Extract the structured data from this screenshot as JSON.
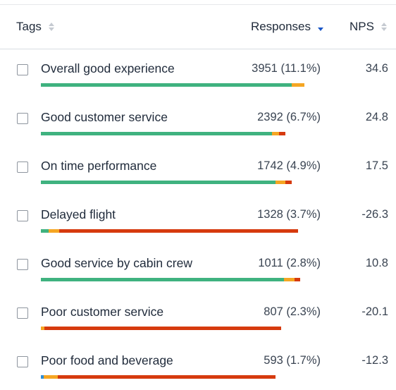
{
  "header": {
    "tags_label": "Tags",
    "responses_label": "Responses",
    "nps_label": "NPS"
  },
  "colors": {
    "promoter": "#3fb27f",
    "passive": "#f5a623",
    "detractor": "#d63a0e",
    "other": "#2f8fd6",
    "sort_active": "#1a56c7"
  },
  "rows": [
    {
      "tag": "Overall good experience",
      "responses": "3951 (11.1%)",
      "nps": "34.6",
      "bar_total": 0.87,
      "bar": {
        "other": 0,
        "promoter": 0.951,
        "passive": 0.049,
        "detractor": 0
      }
    },
    {
      "tag": "Good customer service",
      "responses": "2392 (6.7%)",
      "nps": "24.8",
      "bar_total": 0.808,
      "bar": {
        "other": 0,
        "promoter": 0.946,
        "passive": 0.029,
        "detractor": 0.025
      }
    },
    {
      "tag": "On time performance",
      "responses": "1742 (4.9%)",
      "nps": "17.5",
      "bar_total": 0.829,
      "bar": {
        "other": 0,
        "promoter": 0.937,
        "passive": 0.039,
        "detractor": 0.024
      }
    },
    {
      "tag": "Delayed flight",
      "responses": "1328 (3.7%)",
      "nps": "-26.3",
      "bar_total": 0.848,
      "bar": {
        "other": 0,
        "promoter": 0.031,
        "passive": 0.041,
        "detractor": 0.928
      }
    },
    {
      "tag": "Good service by cabin crew",
      "responses": "1011 (2.8%)",
      "nps": "10.8",
      "bar_total": 0.855,
      "bar": {
        "other": 0,
        "promoter": 0.937,
        "passive": 0.041,
        "detractor": 0.022
      }
    },
    {
      "tag": "Poor customer service",
      "responses": "807 (2.3%)",
      "nps": "-20.1",
      "bar_total": 0.794,
      "bar": {
        "other": 0,
        "promoter": 0,
        "passive": 0.015,
        "detractor": 0.985
      }
    },
    {
      "tag": "Poor food and beverage",
      "responses": "593 (1.7%)",
      "nps": "-12.3",
      "bar_total": 0.775,
      "bar": {
        "other": 0.012,
        "promoter": 0,
        "passive": 0.061,
        "detractor": 0.927
      }
    }
  ]
}
